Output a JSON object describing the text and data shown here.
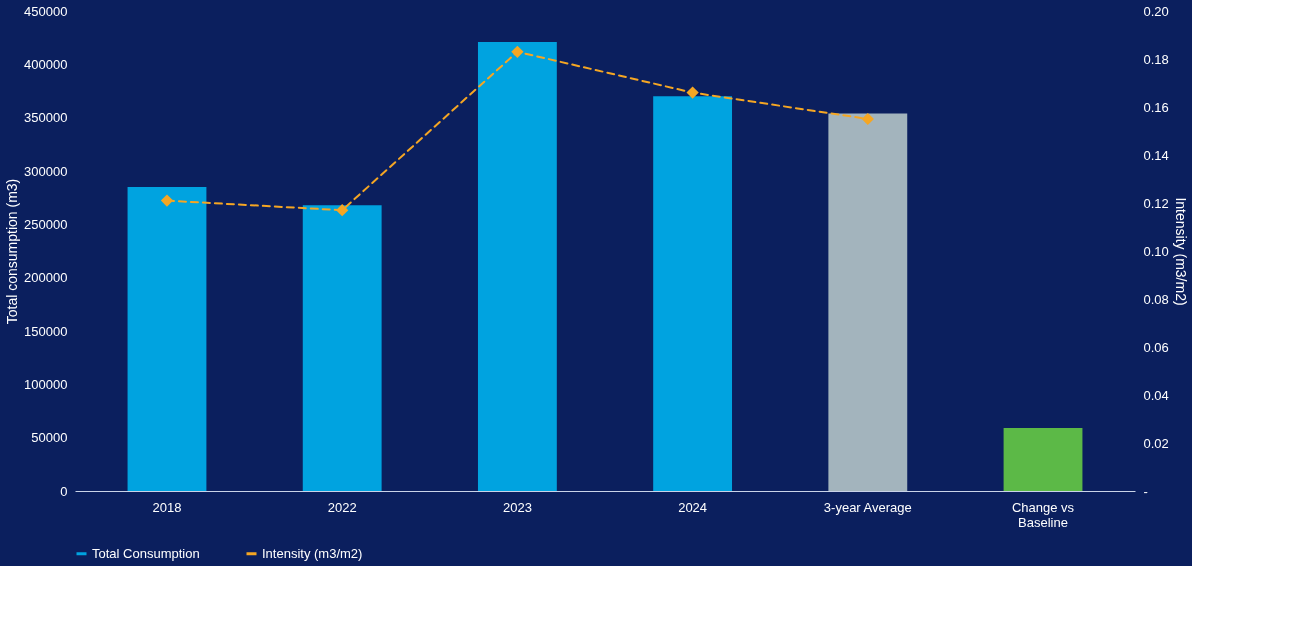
{
  "chart_data": {
    "type": "bar",
    "categories": [
      "2018",
      "2022",
      "2023",
      "2024",
      "3-year Average",
      "Change vs Baseline"
    ],
    "ylabel": "Total consumption (m3)",
    "y2label": "Intensity (m3/m2)",
    "ylim": [
      0,
      450000
    ],
    "yticks": [
      0,
      50000,
      100000,
      150000,
      200000,
      250000,
      300000,
      350000,
      400000,
      450000
    ],
    "y2lim": [
      0,
      0.2
    ],
    "y2ticks": [
      {
        "value": 0,
        "label": "-"
      },
      {
        "value": 0.02,
        "label": "0.02"
      },
      {
        "value": 0.04,
        "label": "0.04"
      },
      {
        "value": 0.06,
        "label": "0.06"
      },
      {
        "value": 0.08,
        "label": "0.08"
      },
      {
        "value": 0.1,
        "label": "0.10"
      },
      {
        "value": 0.12,
        "label": "0.12"
      },
      {
        "value": 0.14,
        "label": "0.14"
      },
      {
        "value": 0.16,
        "label": "0.16"
      },
      {
        "value": 0.18,
        "label": "0.18"
      },
      {
        "value": 0.2,
        "label": "0.20"
      }
    ],
    "series": [
      {
        "name": "Total Consumption",
        "type": "bar",
        "color": "#00a3e0",
        "colors": [
          "#00a3e0",
          "#00a3e0",
          "#00a3e0",
          "#00a3e0",
          "#a3b4bd",
          "#5cb947"
        ],
        "values": [
          285000,
          268000,
          421000,
          370000,
          354000,
          59000
        ]
      },
      {
        "name": "Intensity (m3/m2)",
        "type": "line",
        "axis": "y2",
        "color": "#f5a623",
        "marker": "diamond",
        "line_style": "dashed",
        "values": [
          0.121,
          0.117,
          0.183,
          0.166,
          0.155,
          null
        ]
      }
    ],
    "grid": false,
    "legend": "bottom"
  }
}
